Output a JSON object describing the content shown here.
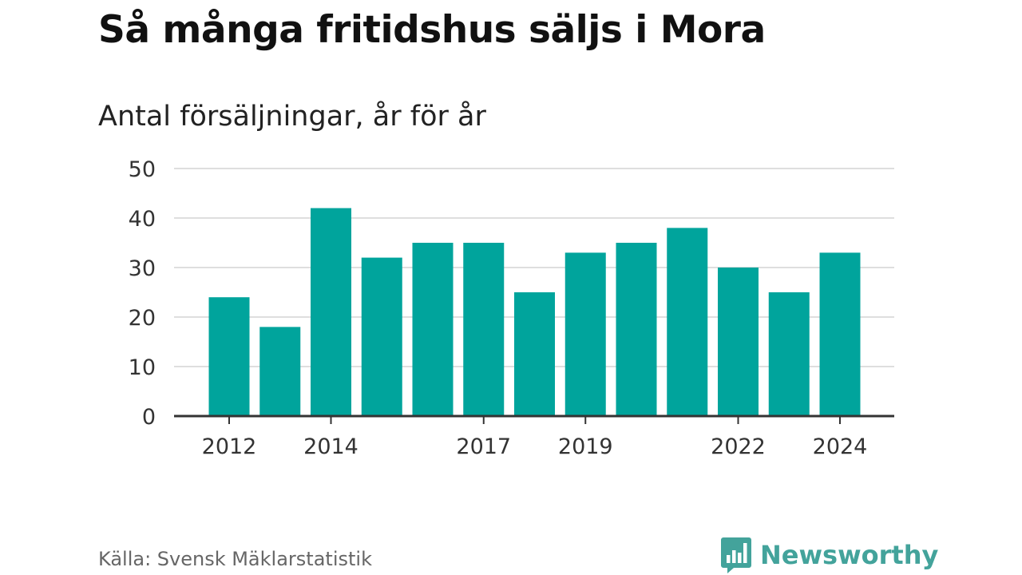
{
  "header": {
    "title": "Så många fritidshus säljs i Mora",
    "subtitle": "Antal försäljningar, år för år"
  },
  "footer": {
    "source": "Källa: Svensk Mäklarstatistik",
    "brand": "Newsworthy",
    "brand_icon": "bar-chart-speech-bubble-icon"
  },
  "colors": {
    "bar": "#00a49c",
    "grid": "#dedede",
    "axis": "#333333",
    "brand": "#43a39b"
  },
  "chart_data": {
    "type": "bar",
    "categories": [
      "2012",
      "2013",
      "2014",
      "2015",
      "2016",
      "2017",
      "2018",
      "2019",
      "2020",
      "2021",
      "2022",
      "2023",
      "2024"
    ],
    "values": [
      24,
      18,
      42,
      32,
      35,
      35,
      25,
      33,
      35,
      38,
      30,
      25,
      33
    ],
    "x_tick_labels": [
      "2012",
      "2014",
      "2017",
      "2019",
      "2022",
      "2024"
    ],
    "y_ticks": [
      0,
      10,
      20,
      30,
      40,
      50
    ],
    "ylim": [
      0,
      50
    ],
    "title": "Så många fritidshus säljs i Mora",
    "subtitle": "Antal försäljningar, år för år",
    "xlabel": "",
    "ylabel": "",
    "grid": true,
    "legend": "none"
  }
}
